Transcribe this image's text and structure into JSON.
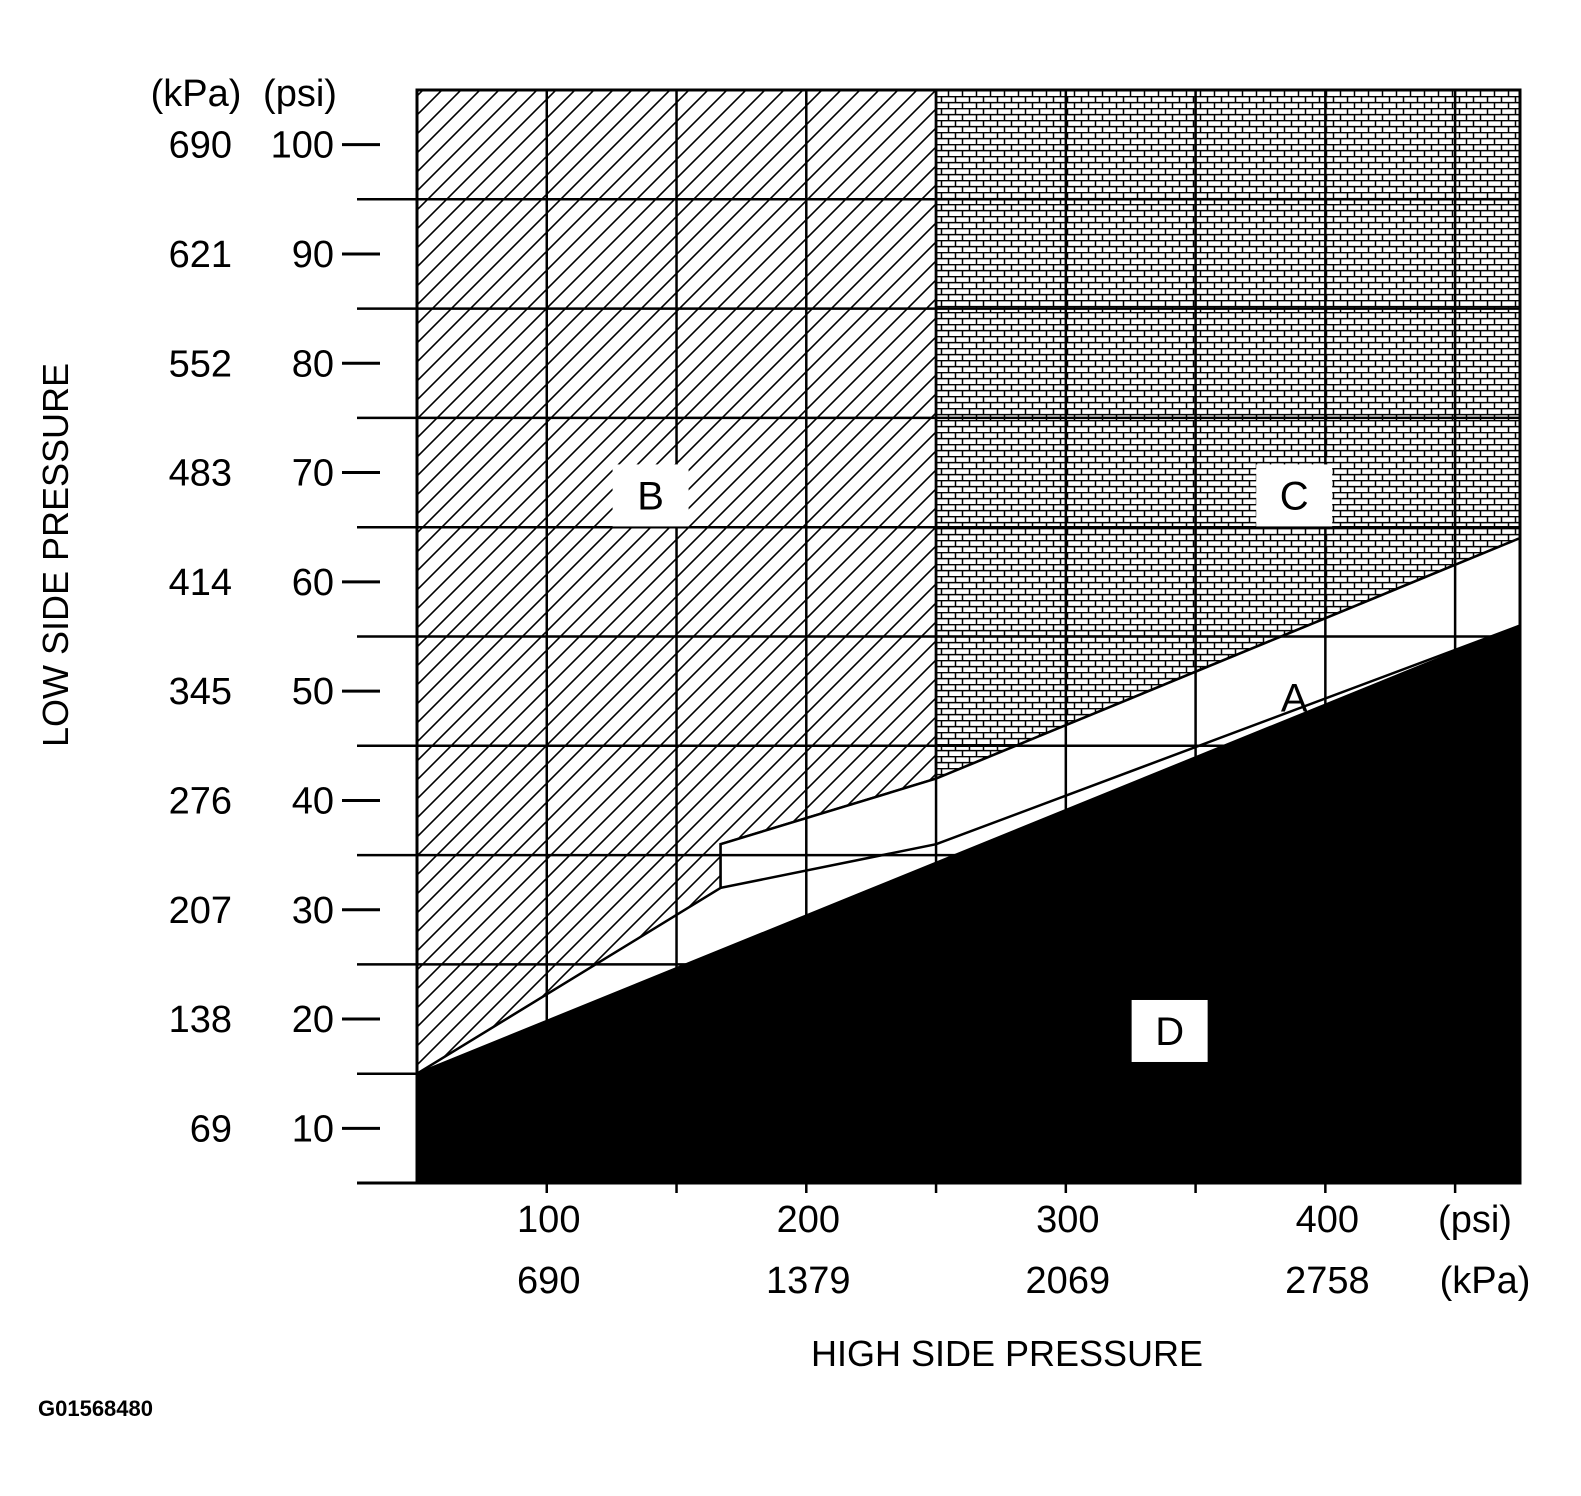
{
  "chart_data": {
    "type": "area",
    "xlabel": "HIGH SIDE PRESSURE",
    "ylabel": "LOW SIDE PRESSURE",
    "x_units": [
      "(psi)",
      "(kPa)"
    ],
    "y_units": [
      "(kPa)",
      "(psi)"
    ],
    "x_ticks_psi": [
      "100",
      "200",
      "300",
      "400"
    ],
    "x_ticks_kpa": [
      "690",
      "1379",
      "2069",
      "2758"
    ],
    "y_ticks_psi": [
      "100",
      "90",
      "80",
      "70",
      "60",
      "50",
      "40",
      "30",
      "20",
      "10"
    ],
    "y_ticks_kpa": [
      "690",
      "621",
      "552",
      "483",
      "414",
      "345",
      "276",
      "207",
      "138",
      "69"
    ],
    "xlim_psi": [
      50,
      475
    ],
    "ylim_psi": [
      5,
      105
    ],
    "regions": [
      {
        "label": "A",
        "fill": "white",
        "boundary_psi": [
          [
            167,
            36
          ],
          [
            250,
            42
          ],
          [
            475,
            64
          ],
          [
            475,
            56
          ],
          [
            250,
            36
          ],
          [
            167,
            32
          ]
        ]
      },
      {
        "label": "B",
        "fill": "diagonal-hatch",
        "boundary_psi": [
          [
            50,
            105
          ],
          [
            250,
            105
          ],
          [
            250,
            42
          ],
          [
            167,
            36
          ],
          [
            167,
            32
          ],
          [
            50,
            15
          ]
        ]
      },
      {
        "label": "C",
        "fill": "brick-pattern",
        "boundary_psi": [
          [
            250,
            105
          ],
          [
            475,
            105
          ],
          [
            475,
            64
          ],
          [
            250,
            42
          ]
        ]
      },
      {
        "label": "D",
        "fill": "black",
        "boundary_psi": [
          [
            50,
            5
          ],
          [
            475,
            5
          ],
          [
            475,
            56
          ],
          [
            50,
            15
          ]
        ]
      }
    ],
    "colors": {
      "background": "#ffffff",
      "ink": "#000000"
    }
  },
  "figure_id": "G01568480"
}
